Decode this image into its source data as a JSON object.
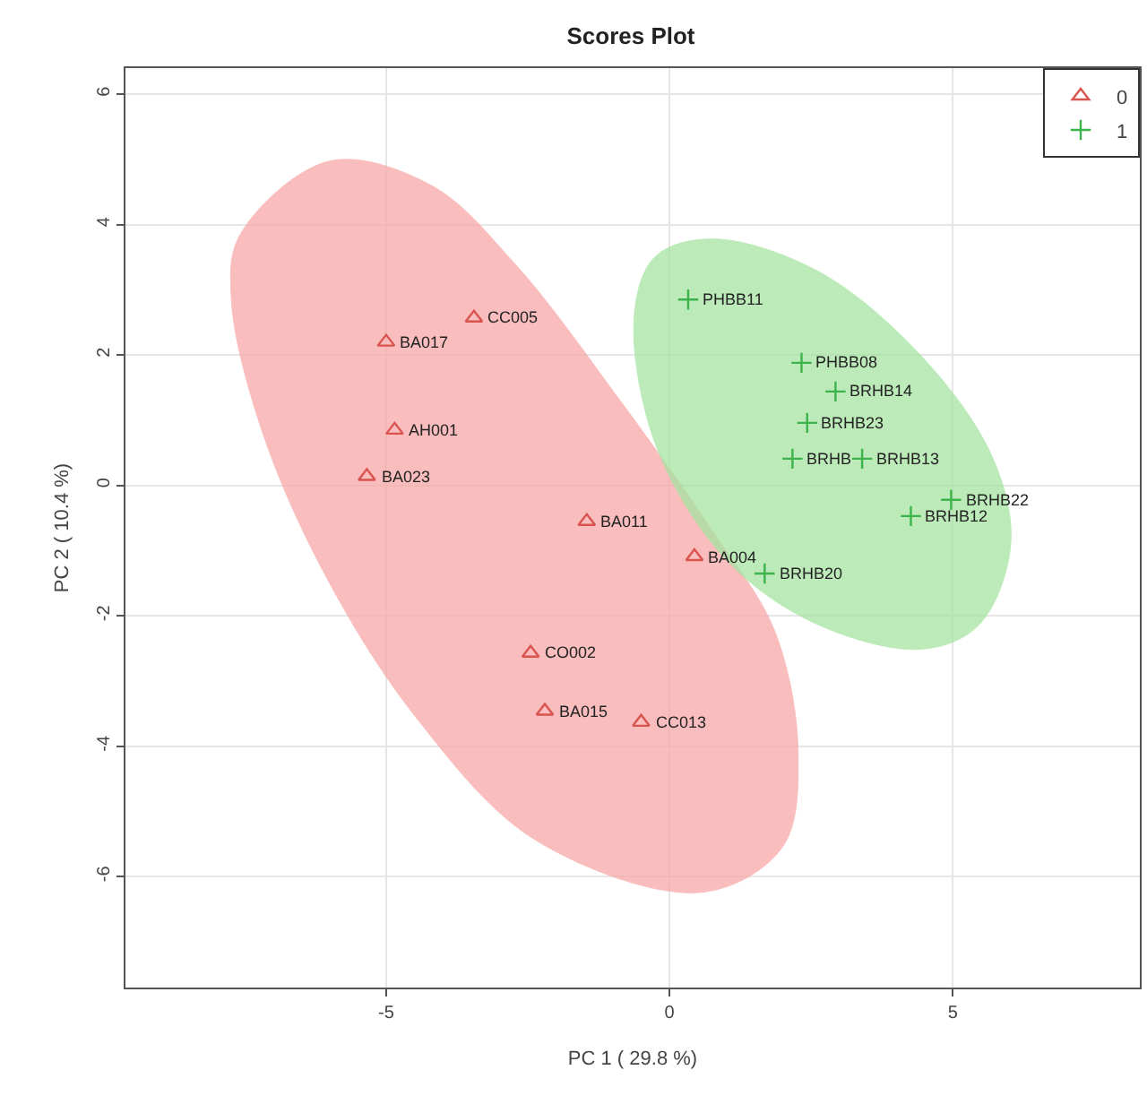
{
  "chart_data": {
    "type": "scatter",
    "title": "Scores Plot",
    "xlabel": "PC 1 ( 29.8 %)",
    "ylabel": "PC 2 ( 10.4 %)",
    "xlim": [
      -9.6,
      8.3
    ],
    "ylim": [
      -7.7,
      6.4
    ],
    "xticks": [
      -5,
      0,
      5
    ],
    "yticks": [
      -6,
      -4,
      -2,
      0,
      2,
      4,
      6
    ],
    "grid": true,
    "legend": "top right",
    "series": [
      {
        "type": "area",
        "color": "#f7a8a8",
        "x": [
          -6.02,
          -7.58,
          -7.73,
          -7.2,
          -6.09,
          -4.47,
          -2.36,
          0.56,
          1.99,
          2.27,
          1.86,
          0.75,
          -0.87,
          -2.73,
          -4.22,
          -6.02
        ],
        "values": [
          4.97,
          3.84,
          2.85,
          0.86,
          -1.35,
          -3.56,
          -5.44,
          -6.24,
          -5.55,
          -4.12,
          -2.24,
          -0.69,
          1.3,
          3.4,
          4.61,
          4.97
        ]
      },
      {
        "type": "area",
        "color": "#a6e3a1",
        "x": [
          0.75,
          2.61,
          4.47,
          5.71,
          6.02,
          5.47,
          4.47,
          2.61,
          0.99,
          -0.25,
          -0.62,
          -0.25,
          0.75
        ],
        "values": [
          3.78,
          3.29,
          1.96,
          0.41,
          -0.91,
          -2.13,
          -2.51,
          -2.13,
          -1.13,
          0.64,
          2.62,
          3.51,
          3.78
        ]
      },
      {
        "name": "0",
        "color": "#d9534f",
        "marker": "triangle",
        "x": [
          -3.45,
          -5.0,
          -4.85,
          -5.34,
          -1.46,
          0.44,
          -2.45,
          -2.2,
          -0.5
        ],
        "values": [
          2.57,
          2.2,
          0.85,
          0.14,
          -0.55,
          -1.09,
          -2.57,
          -3.46,
          -3.63
        ]
      },
      {
        "name": "1",
        "color": "#3cb44b",
        "marker": "cross",
        "x": [
          0.33,
          2.33,
          2.93,
          2.43,
          2.17,
          3.4,
          4.97,
          4.26,
          1.68
        ],
        "values": [
          2.85,
          1.88,
          1.44,
          0.96,
          0.41,
          0.41,
          -0.22,
          -0.47,
          -1.35
        ]
      }
    ],
    "annotations": [
      {
        "text": "CC005",
        "x": -3.45,
        "y": 2.57
      },
      {
        "text": "BA017",
        "x": -5.0,
        "y": 2.2
      },
      {
        "text": "AH001",
        "x": -4.85,
        "y": 0.85
      },
      {
        "text": "BA023",
        "x": -5.34,
        "y": 0.14
      },
      {
        "text": "BA011",
        "x": -1.46,
        "y": -0.55
      },
      {
        "text": "BA004",
        "x": 0.44,
        "y": -1.09
      },
      {
        "text": "CO002",
        "x": -2.45,
        "y": -2.57
      },
      {
        "text": "BA015",
        "x": -2.2,
        "y": -3.46
      },
      {
        "text": "CC013",
        "x": -0.5,
        "y": -3.63
      },
      {
        "text": "PHBB11",
        "x": 0.33,
        "y": 2.85
      },
      {
        "text": "PHBB08",
        "x": 2.33,
        "y": 1.88
      },
      {
        "text": "BRHB14",
        "x": 2.93,
        "y": 1.44
      },
      {
        "text": "BRHB23",
        "x": 2.43,
        "y": 0.96
      },
      {
        "text": "BRHB",
        "x": 2.17,
        "y": 0.41
      },
      {
        "text": "BRHB13",
        "x": 3.4,
        "y": 0.41
      },
      {
        "text": "BRHB22",
        "x": 4.97,
        "y": -0.22
      },
      {
        "text": "BRHB12",
        "x": 4.26,
        "y": -0.47
      },
      {
        "text": "BRHB20",
        "x": 1.68,
        "y": -1.35
      }
    ]
  }
}
